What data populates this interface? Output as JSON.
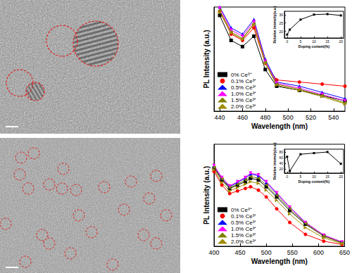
{
  "chart_data": [
    {
      "type": "line",
      "xlabel": "Wavelength (nm)",
      "ylabel": "PL Intensity (a.u.)",
      "xlim": [
        435,
        550
      ],
      "xticks": [
        440,
        460,
        480,
        500,
        520,
        540
      ],
      "ylim": [
        0,
        100
      ],
      "tick_labels": "x",
      "grid": false,
      "legend": "lower left",
      "x": [
        440,
        450,
        460,
        470,
        480,
        490,
        510,
        530,
        550
      ],
      "series": [
        {
          "name": "0% Ce³⁺",
          "color": "#000000",
          "marker": "square",
          "values": [
            92,
            68,
            62,
            72,
            40,
            24,
            20,
            15,
            10
          ]
        },
        {
          "name": "0.1% Ce³⁺",
          "color": "#ff0000",
          "marker": "circle",
          "values": [
            96,
            74,
            68,
            80,
            46,
            30,
            28,
            26,
            24
          ]
        },
        {
          "name": "0.5% Ce³⁺",
          "color": "#0000ff",
          "marker": "triangle-up",
          "values": [
            100,
            80,
            74,
            88,
            50,
            28,
            24,
            18,
            12
          ]
        },
        {
          "name": "1.0% Ce³⁺",
          "color": "#ff00ff",
          "marker": "triangle-down",
          "values": [
            99,
            78,
            72,
            86,
            48,
            27,
            22,
            16,
            10
          ]
        },
        {
          "name": "1.5% Ce³⁺",
          "color": "#808000",
          "marker": "triangle-left",
          "values": [
            97,
            76,
            70,
            84,
            47,
            26,
            21,
            15,
            8
          ]
        },
        {
          "name": "2.0% Ce³⁺",
          "color": "#a08c00",
          "marker": "triangle-right",
          "values": [
            95,
            75,
            69,
            83,
            46,
            25,
            20,
            14,
            7
          ]
        }
      ]
    },
    {
      "type": "line",
      "xlabel": "Doping content(%)",
      "ylabel": "Relative intensity(a.u.)",
      "xlim": [
        -1,
        21
      ],
      "xticks": [
        0,
        5,
        10,
        15,
        20
      ],
      "ylim": [
        16,
        32
      ],
      "yticks": [
        20,
        25,
        30
      ],
      "grid": false,
      "color": "#000000",
      "marker": "square",
      "x": [
        0,
        1,
        5,
        10,
        15,
        20
      ],
      "values": [
        18,
        21,
        27,
        30,
        30.3,
        29.5
      ]
    },
    {
      "type": "line",
      "xlabel": "Wavelength (nm)",
      "ylabel": "PL Intensity (a.u.)",
      "xlim": [
        400,
        650
      ],
      "xticks": [
        400,
        450,
        500,
        550,
        600,
        650
      ],
      "ylim": [
        0,
        120
      ],
      "tick_labels": "x",
      "grid": false,
      "legend": "lower left",
      "x": [
        400,
        415,
        430,
        445,
        460,
        470,
        485,
        500,
        520,
        545,
        575,
        610,
        645
      ],
      "series": [
        {
          "name": "0% Ce³⁺",
          "color": "#000000",
          "marker": "square",
          "values": [
            92,
            78,
            68,
            72,
            76,
            80,
            78,
            70,
            58,
            42,
            26,
            12,
            4
          ]
        },
        {
          "name": "0.1% Ce³⁺",
          "color": "#ff0000",
          "marker": "circle",
          "values": [
            88,
            72,
            62,
            65,
            68,
            70,
            66,
            58,
            44,
            28,
            14,
            6,
            2
          ]
        },
        {
          "name": "0.5% Ce³⁺",
          "color": "#0000ff",
          "marker": "triangle-up",
          "values": [
            94,
            80,
            70,
            75,
            80,
            85,
            83,
            75,
            62,
            46,
            28,
            13,
            5
          ]
        },
        {
          "name": "1.0% Ce³⁺",
          "color": "#ff00ff",
          "marker": "triangle-down",
          "values": [
            95,
            81,
            71,
            76,
            81,
            86,
            84,
            76,
            63,
            46,
            28,
            13,
            5
          ]
        },
        {
          "name": "1.5% Ce³⁺",
          "color": "#808000",
          "marker": "triangle-left",
          "values": [
            93,
            79,
            69,
            73,
            78,
            82,
            80,
            72,
            60,
            44,
            27,
            12,
            4
          ]
        },
        {
          "name": "2.0% Ce³⁺",
          "color": "#a08c00",
          "marker": "triangle-right",
          "values": [
            90,
            75,
            65,
            69,
            73,
            76,
            74,
            66,
            54,
            38,
            22,
            10,
            3
          ]
        }
      ]
    },
    {
      "type": "line",
      "xlabel": "Doping content(%)",
      "ylabel": "Relative intensity(a.u.)",
      "xlim": [
        -1,
        21
      ],
      "xticks": [
        0,
        5,
        10,
        15,
        20
      ],
      "ylim": [
        5,
        90
      ],
      "yticks": [
        20,
        40,
        60,
        80
      ],
      "grid": false,
      "color": "#000000",
      "marker": "square",
      "x": [
        0,
        1,
        5,
        10,
        15,
        20
      ],
      "values": [
        63,
        12,
        72,
        76,
        80,
        38
      ]
    }
  ]
}
